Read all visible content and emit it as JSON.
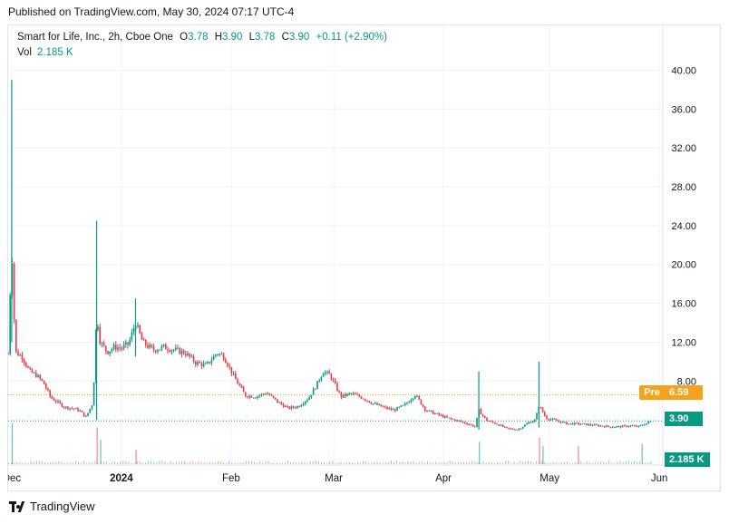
{
  "header": {
    "published": "Published on TradingView.com, May 30, 2024 07:17 UTC-4"
  },
  "legend": {
    "symbol": "Smart for Life, Inc., 2h, Cboe One",
    "o_label": "O",
    "o": "3.78",
    "h_label": "H",
    "h": "3.90",
    "l_label": "L",
    "l": "3.78",
    "c_label": "C",
    "c": "3.90",
    "change": "+0.11 (+2.90%)",
    "vol_label": "Vol",
    "vol": "2.185 K"
  },
  "tags": {
    "pre_label": "Pre",
    "pre_value": "6.59",
    "last_value": "3.90",
    "volume_value": "2.185 K"
  },
  "footer": {
    "brand": "TradingView"
  },
  "colors": {
    "up": "#089981",
    "down": "#f23645",
    "pre": "#f7a21b",
    "grid": "#f0f3fa"
  },
  "chart_data": {
    "type": "candlestick",
    "title": "Smart for Life, Inc., 2h, Cboe One",
    "ylim": [
      0,
      42
    ],
    "y_scale": "linear",
    "y_ticks": [
      "40.00",
      "36.00",
      "32.00",
      "28.00",
      "24.00",
      "20.00",
      "16.00",
      "12.00",
      "8.00"
    ],
    "x_ticks": [
      "Dec",
      "2024",
      "Feb",
      "Mar",
      "Apr",
      "May",
      "Jun"
    ],
    "xlim": [
      "2023-11-30",
      "2024-06-02"
    ],
    "grid": true,
    "price_lines": [
      {
        "name": "Pre",
        "value": 6.59,
        "style": "dotted",
        "color": "#f7a21b"
      },
      {
        "name": "Last",
        "value": 3.9,
        "style": "dotted",
        "color": "#089981"
      }
    ],
    "close_series": [
      [
        "2023-11-30",
        10.8
      ],
      [
        "2023-12-01",
        22.0
      ],
      [
        "2023-12-02",
        11.0
      ],
      [
        "2023-12-04",
        10.5
      ],
      [
        "2023-12-06",
        9.0
      ],
      [
        "2023-12-08",
        8.6
      ],
      [
        "2023-12-10",
        7.8
      ],
      [
        "2023-12-12",
        6.3
      ],
      [
        "2023-12-14",
        5.8
      ],
      [
        "2023-12-16",
        5.3
      ],
      [
        "2023-12-18",
        5.2
      ],
      [
        "2023-12-20",
        5.0
      ],
      [
        "2023-12-22",
        4.3
      ],
      [
        "2023-12-24",
        5.8
      ],
      [
        "2023-12-25",
        15.0
      ],
      [
        "2023-12-26",
        12.0
      ],
      [
        "2023-12-28",
        11.0
      ],
      [
        "2023-12-30",
        11.5
      ],
      [
        "2024-01-01",
        11.4
      ],
      [
        "2024-01-03",
        11.8
      ],
      [
        "2024-01-05",
        14.0
      ],
      [
        "2024-01-07",
        12.0
      ],
      [
        "2024-01-10",
        11.2
      ],
      [
        "2024-01-13",
        11.5
      ],
      [
        "2024-01-16",
        11.2
      ],
      [
        "2024-01-19",
        10.9
      ],
      [
        "2024-01-22",
        9.9
      ],
      [
        "2024-01-25",
        9.6
      ],
      [
        "2024-01-28",
        10.9
      ],
      [
        "2024-01-30",
        10.5
      ],
      [
        "2024-02-02",
        8.3
      ],
      [
        "2024-02-05",
        6.5
      ],
      [
        "2024-02-08",
        6.4
      ],
      [
        "2024-02-11",
        6.8
      ],
      [
        "2024-02-14",
        5.9
      ],
      [
        "2024-02-17",
        5.2
      ],
      [
        "2024-02-20",
        5.4
      ],
      [
        "2024-02-23",
        6.3
      ],
      [
        "2024-02-25",
        7.5
      ],
      [
        "2024-02-27",
        9.0
      ],
      [
        "2024-02-29",
        8.6
      ],
      [
        "2024-03-03",
        6.4
      ],
      [
        "2024-03-06",
        6.7
      ],
      [
        "2024-03-09",
        6.3
      ],
      [
        "2024-03-12",
        5.7
      ],
      [
        "2024-03-15",
        5.3
      ],
      [
        "2024-03-18",
        5.0
      ],
      [
        "2024-03-21",
        5.5
      ],
      [
        "2024-03-24",
        6.6
      ],
      [
        "2024-03-27",
        5.0
      ],
      [
        "2024-03-30",
        4.6
      ],
      [
        "2024-04-02",
        4.2
      ],
      [
        "2024-04-05",
        3.9
      ],
      [
        "2024-04-08",
        3.6
      ],
      [
        "2024-04-10",
        3.3
      ],
      [
        "2024-04-11",
        5.0
      ],
      [
        "2024-04-13",
        4.0
      ],
      [
        "2024-04-16",
        3.6
      ],
      [
        "2024-04-19",
        3.1
      ],
      [
        "2024-04-22",
        3.0
      ],
      [
        "2024-04-25",
        3.7
      ],
      [
        "2024-04-27",
        4.0
      ],
      [
        "2024-04-28",
        5.5
      ],
      [
        "2024-04-30",
        4.2
      ],
      [
        "2024-05-03",
        3.9
      ],
      [
        "2024-05-06",
        3.6
      ],
      [
        "2024-05-09",
        3.6
      ],
      [
        "2024-05-12",
        3.5
      ],
      [
        "2024-05-15",
        3.4
      ],
      [
        "2024-05-18",
        3.3
      ],
      [
        "2024-05-21",
        3.3
      ],
      [
        "2024-05-24",
        3.4
      ],
      [
        "2024-05-26",
        3.3
      ],
      [
        "2024-05-28",
        3.6
      ],
      [
        "2024-05-30",
        3.9
      ]
    ],
    "spikes": [
      {
        "date": "2023-12-01",
        "high": 39.0,
        "low": 12.0
      },
      {
        "date": "2023-12-25",
        "high": 24.5,
        "low": 4.0
      },
      {
        "date": "2024-01-05",
        "high": 16.5,
        "low": 10.5
      },
      {
        "date": "2024-04-11",
        "high": 9.0,
        "low": 3.0
      },
      {
        "date": "2024-04-28",
        "high": 10.0,
        "low": 3.2
      }
    ],
    "volume": {
      "last": "2.185 K",
      "spikes": [
        [
          "2023-12-01",
          1.0
        ],
        [
          "2023-12-25",
          0.9
        ],
        [
          "2023-12-26",
          0.6
        ],
        [
          "2024-01-05",
          0.35
        ],
        [
          "2024-04-11",
          0.55
        ],
        [
          "2024-04-28",
          0.65
        ],
        [
          "2024-04-29",
          0.45
        ],
        [
          "2024-05-09",
          0.45
        ],
        [
          "2024-05-27",
          0.5
        ]
      ]
    }
  }
}
